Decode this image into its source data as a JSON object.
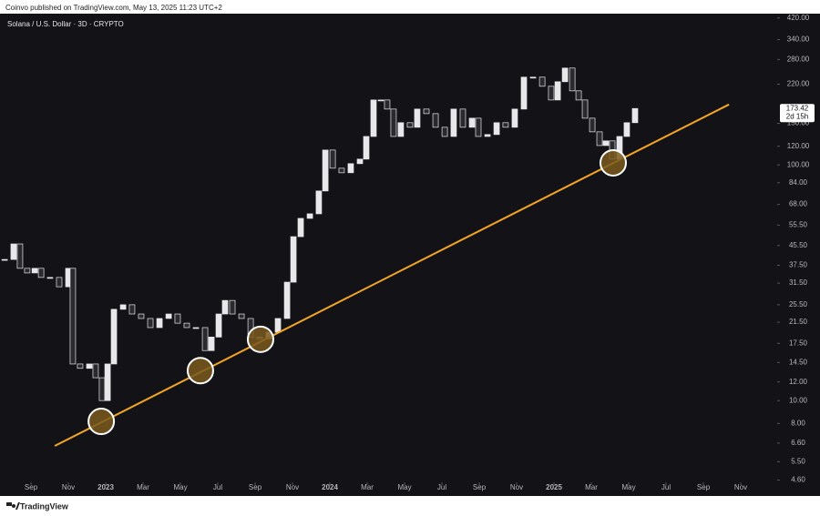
{
  "header": {
    "byline": "Coinvo published on TradingView.com, May 13, 2025 11:23 UTC+2",
    "brand": "TradingView"
  },
  "chart_data": {
    "type": "candlestick",
    "title": "Solana / U.S. Dollar · 3D · CRYPTO",
    "x": [
      6.59,
      7.07,
      7.41,
      7.8,
      8.2,
      8.54,
      9.02,
      9.51,
      10.0,
      10.24,
      10.63,
      11.12,
      11.46,
      11.8,
      12.1,
      12.44,
      12.93,
      13.41,
      13.9,
      14.39,
      14.88,
      15.37,
      15.85,
      16.34,
      16.83,
      17.32,
      17.66,
      18.05,
      18.39,
      18.78,
      19.27,
      19.76,
      20.24,
      20.73,
      21.22,
      21.71,
      22.05,
      22.44,
      22.93,
      23.41,
      23.76,
      24.15,
      24.63,
      25.12,
      25.61,
      25.95,
      26.34,
      26.73,
      27.07,
      27.41,
      27.8,
      28.29,
      28.68,
      29.17,
      29.66,
      30.15,
      30.63,
      31.12,
      31.61,
      31.95,
      32.44,
      32.93,
      33.41,
      33.9,
      34.39,
      34.88,
      35.37,
      35.85,
      36.2,
      36.59,
      36.98,
      37.32,
      37.66,
      38.05,
      38.44,
      38.78,
      39.12,
      39.51,
      39.9,
      40.34
    ],
    "values": [
      39.7,
      46.2,
      36.4,
      34.8,
      36.4,
      33.3,
      33.3,
      30.4,
      36.4,
      14.3,
      13.7,
      14.3,
      12.5,
      10.0,
      14.3,
      24.4,
      25.5,
      23.3,
      22.3,
      20.4,
      22.3,
      23.3,
      21.3,
      20.4,
      20.4,
      16.3,
      18.6,
      23.3,
      26.6,
      23.3,
      22.3,
      18.6,
      18.3,
      19.5,
      22.3,
      31.8,
      49.6,
      59.3,
      62.0,
      77.5,
      115.6,
      96.8,
      92.6,
      101.2,
      105.8,
      132.0,
      188.5,
      188.5,
      172.5,
      132.0,
      151.0,
      144.4,
      172.5,
      165.0,
      144.4,
      132.0,
      172.5,
      144.4,
      157.8,
      132.0,
      134.5,
      151.0,
      144.4,
      172.5,
      235.6,
      235.6,
      215.5,
      188.5,
      225.3,
      257.5,
      206.1,
      188.5,
      157.8,
      138.1,
      120.8,
      126.4,
      105.8,
      132.0,
      151.0,
      173.42
    ],
    "last_price_label": "173.42",
    "countdown": "2d 15h",
    "color_up": "#e8e8ea",
    "color_down": "#2a2a2e",
    "log_y": true,
    "xlim": [
      6.34,
      47.95
    ],
    "ylim": [
      4.5,
      446
    ],
    "xticks": [
      {
        "value": 8,
        "label": "Sep"
      },
      {
        "value": 10,
        "label": "Nov"
      },
      {
        "value": 12,
        "label": "2023"
      },
      {
        "value": 14,
        "label": "Mar"
      },
      {
        "value": 16,
        "label": "May"
      },
      {
        "value": 18,
        "label": "Jul"
      },
      {
        "value": 20,
        "label": "Sep"
      },
      {
        "value": 22,
        "label": "Nov"
      },
      {
        "value": 24,
        "label": "2024"
      },
      {
        "value": 26,
        "label": "Mar"
      },
      {
        "value": 28,
        "label": "May"
      },
      {
        "value": 30,
        "label": "Jul"
      },
      {
        "value": 32,
        "label": "Sep"
      },
      {
        "value": 34,
        "label": "Nov"
      },
      {
        "value": 36,
        "label": "2025"
      },
      {
        "value": 38,
        "label": "Mar"
      },
      {
        "value": 40,
        "label": "May"
      },
      {
        "value": 42,
        "label": "Jul"
      },
      {
        "value": 44,
        "label": "Sep"
      },
      {
        "value": 46,
        "label": "Nov"
      }
    ],
    "yticks": [
      {
        "value": 420,
        "label": "420.00"
      },
      {
        "value": 340,
        "label": "340.00"
      },
      {
        "value": 280,
        "label": "280.00"
      },
      {
        "value": 220,
        "label": "220.00"
      },
      {
        "value": 150,
        "label": "150.00"
      },
      {
        "value": 120,
        "label": "120.00"
      },
      {
        "value": 100,
        "label": "100.00"
      },
      {
        "value": 84,
        "label": "84.00"
      },
      {
        "value": 68,
        "label": "68.00"
      },
      {
        "value": 55.5,
        "label": "55.50"
      },
      {
        "value": 45.5,
        "label": "45.50"
      },
      {
        "value": 37.5,
        "label": "37.50"
      },
      {
        "value": 31.5,
        "label": "31.50"
      },
      {
        "value": 25.5,
        "label": "25.50"
      },
      {
        "value": 21.5,
        "label": "21.50"
      },
      {
        "value": 17.5,
        "label": "17.50"
      },
      {
        "value": 14.5,
        "label": "14.50"
      },
      {
        "value": 12,
        "label": "12.00"
      },
      {
        "value": 10,
        "label": "10.00"
      },
      {
        "value": 8,
        "label": "8.00"
      },
      {
        "value": 6.6,
        "label": "6.60"
      },
      {
        "value": 5.5,
        "label": "5.50"
      },
      {
        "value": 4.6,
        "label": "4.60"
      }
    ],
    "trendline": {
      "x": [
        9.27,
        45.37
      ],
      "values": [
        6.42,
        180.4
      ],
      "color": "#f5a623"
    },
    "highlights": {
      "x": [
        11.76,
        17.07,
        20.29,
        39.17
      ],
      "values": [
        8.16,
        13.4,
        18.2,
        102
      ],
      "color": "#7a5a1e"
    }
  }
}
